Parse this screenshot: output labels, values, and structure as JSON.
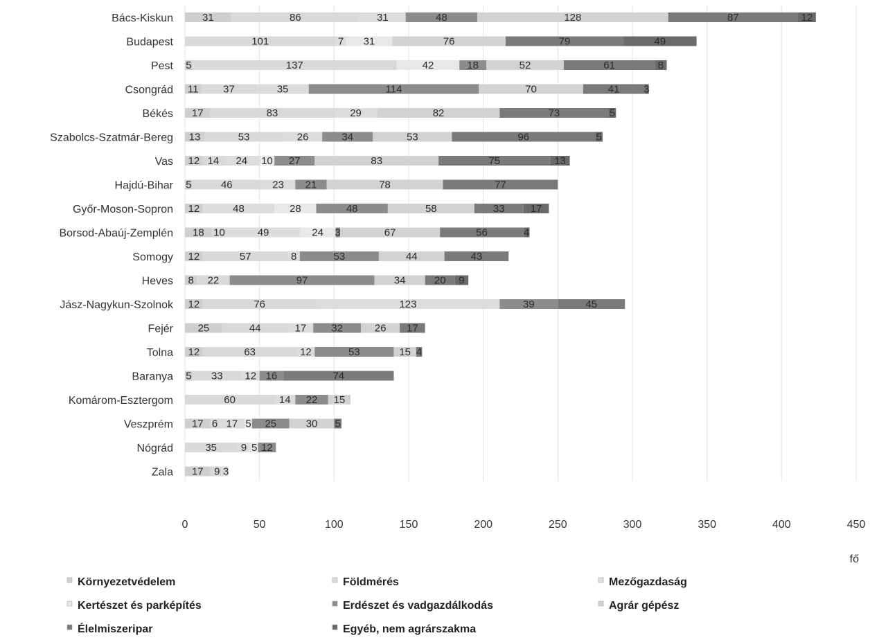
{
  "chart_data": {
    "type": "bar",
    "orientation": "horizontal",
    "stacked": true,
    "xlim": [
      0,
      450
    ],
    "xticks": [
      0,
      50,
      100,
      150,
      200,
      250,
      300,
      350,
      400,
      450
    ],
    "xlabel": "fő",
    "grid": "vertical",
    "legend_position": "bottom",
    "categories": [
      "Bács-Kiskun",
      "Budapest",
      "Pest",
      "Csongrád",
      "Békés",
      "Szabolcs-Szatmár-Bereg",
      "Vas",
      "Hajdú-Bihar",
      "Győr-Moson-Sopron",
      "Borsod-Abaúj-Zemplén",
      "Somogy",
      "Heves",
      "Jász-Nagykun-Szolnok",
      "Fejér",
      "Tolna",
      "Baranya",
      "Komárom-Esztergom",
      "Veszprém",
      "Nógrád",
      "Zala"
    ],
    "series": [
      {
        "name": "Környezetvédelem",
        "color": "#cfcfcf",
        "values": [
          31,
          0,
          5,
          11,
          17,
          13,
          12,
          5,
          12,
          18,
          12,
          8,
          12,
          25,
          12,
          5,
          0,
          17,
          0,
          17
        ]
      },
      {
        "name": "Földmérés",
        "color": "#d9d9d9",
        "values": [
          86,
          101,
          137,
          37,
          83,
          53,
          14,
          46,
          0,
          10,
          57,
          22,
          76,
          44,
          63,
          33,
          60,
          6,
          35,
          9
        ]
      },
      {
        "name": "Mezőgazdaság",
        "color": "#dcdcdc",
        "values": [
          31,
          7,
          0,
          35,
          29,
          26,
          24,
          23,
          48,
          49,
          8,
          0,
          123,
          17,
          12,
          12,
          14,
          17,
          9,
          3
        ]
      },
      {
        "name": "Kertészet és parképítés",
        "color": "#e8e8e8",
        "values": [
          0,
          31,
          42,
          0,
          0,
          0,
          10,
          0,
          28,
          24,
          0,
          0,
          0,
          0,
          0,
          0,
          0,
          5,
          5,
          0
        ]
      },
      {
        "name": "Erdészet és vadgazdálkodás",
        "color": "#8c8c8c",
        "values": [
          48,
          0,
          18,
          114,
          0,
          34,
          27,
          21,
          48,
          3,
          53,
          97,
          39,
          32,
          53,
          16,
          22,
          25,
          12,
          0
        ]
      },
      {
        "name": "Agrár gépész",
        "color": "#d2d2d2",
        "values": [
          128,
          76,
          52,
          70,
          82,
          53,
          83,
          78,
          58,
          67,
          44,
          34,
          0,
          26,
          15,
          0,
          15,
          30,
          0,
          0
        ]
      },
      {
        "name": "Élelmiszeripar",
        "color": "#7a7a7a",
        "values": [
          87,
          79,
          61,
          41,
          73,
          96,
          75,
          77,
          33,
          56,
          43,
          20,
          45,
          17,
          4,
          74,
          0,
          5,
          0,
          0
        ]
      },
      {
        "name": "Egyéb, nem agrárszakma",
        "color": "#6a6a6a",
        "values": [
          12,
          49,
          8,
          3,
          5,
          5,
          13,
          0,
          17,
          4,
          0,
          9,
          0,
          0,
          0,
          0,
          0,
          0,
          0,
          0
        ]
      }
    ]
  }
}
